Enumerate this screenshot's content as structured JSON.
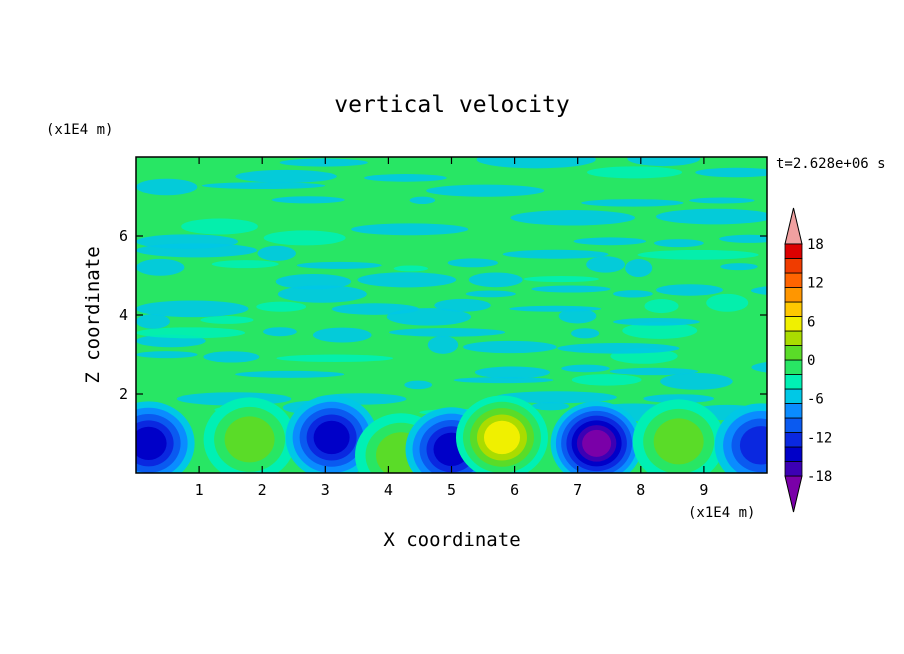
{
  "chart_data": {
    "type": "heatmap",
    "title": "vertical velocity",
    "xlabel": "X coordinate",
    "ylabel": "Z coordinate",
    "x_unit": "(x1E4 m)",
    "y_unit": "(x1E4 m)",
    "time_label": "t=2.628e+06 s",
    "xlim": [
      0,
      10
    ],
    "ylim": [
      0,
      8
    ],
    "x_ticks": [
      "1",
      "2",
      "3",
      "4",
      "5",
      "6",
      "7",
      "8",
      "9"
    ],
    "y_ticks": [
      "2",
      "4",
      "6"
    ],
    "colorbar": {
      "min": -21,
      "max": 21,
      "step": 3,
      "tick_labels": [
        "18",
        "12",
        "6",
        "0",
        "-6",
        "-12",
        "-18"
      ],
      "colors": [
        "#7a00a8",
        "#3c00b4",
        "#0000c8",
        "#0a28e0",
        "#0a5af0",
        "#0a8cff",
        "#00c8e6",
        "#00f0b4",
        "#28e664",
        "#5adc28",
        "#aadc00",
        "#f0f000",
        "#ffc800",
        "#ff9600",
        "#ff6400",
        "#f03c00",
        "#dc0000",
        "#f0a0a0"
      ]
    },
    "features": [
      {
        "x": 0.2,
        "z": 0.75,
        "value": -14
      },
      {
        "x": 1.8,
        "z": 0.85,
        "value": 8
      },
      {
        "x": 3.1,
        "z": 0.9,
        "value": -13
      },
      {
        "x": 4.2,
        "z": 0.45,
        "value": 9
      },
      {
        "x": 5.0,
        "z": 0.6,
        "value": -14
      },
      {
        "x": 5.8,
        "z": 0.9,
        "value": 14
      },
      {
        "x": 7.3,
        "z": 0.75,
        "value": -19
      },
      {
        "x": 8.6,
        "z": 0.8,
        "value": 8
      },
      {
        "x": 9.9,
        "z": 0.7,
        "value": -12
      }
    ]
  }
}
